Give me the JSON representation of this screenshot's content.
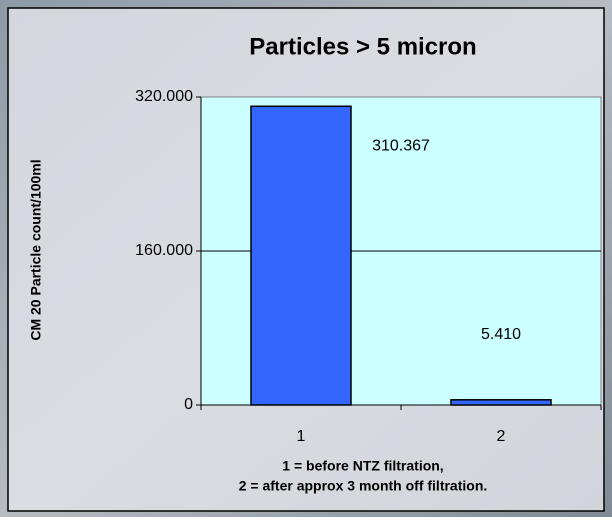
{
  "chart_data": {
    "type": "bar",
    "title": "Particles > 5 micron",
    "y_label": "CM 20 Particle count/100ml",
    "x_label": [
      "1 = before NTZ filtration,",
      "2 = after approx 3 month off filtration."
    ],
    "categories": [
      "1",
      "2"
    ],
    "values": [
      310367,
      5410
    ],
    "value_labels": [
      "310.367",
      "5.410"
    ],
    "color": "#3366ff",
    "ylim": [
      0,
      320000
    ],
    "yticks": [
      0,
      {
        "value": 160000,
        "label": "160.000"
      },
      {
        "value": 320000,
        "label": "320.000"
      }
    ],
    "grid": true
  }
}
